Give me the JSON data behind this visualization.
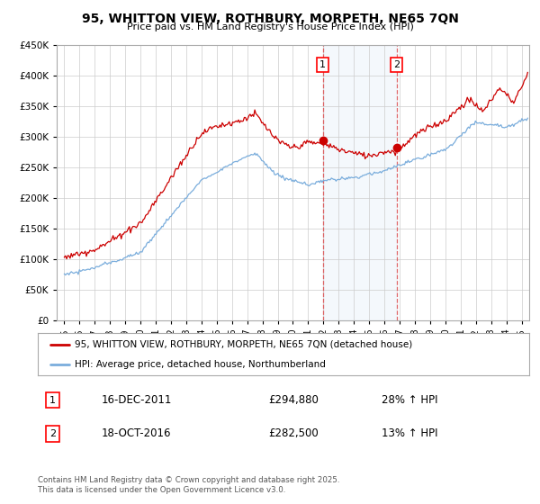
{
  "title": "95, WHITTON VIEW, ROTHBURY, MORPETH, NE65 7QN",
  "subtitle": "Price paid vs. HM Land Registry's House Price Index (HPI)",
  "legend_line1": "95, WHITTON VIEW, ROTHBURY, MORPETH, NE65 7QN (detached house)",
  "legend_line2": "HPI: Average price, detached house, Northumberland",
  "annotation1_label": "1",
  "annotation1_date": "16-DEC-2011",
  "annotation1_price": "£294,880",
  "annotation1_hpi": "28% ↑ HPI",
  "annotation2_label": "2",
  "annotation2_date": "18-OCT-2016",
  "annotation2_price": "£282,500",
  "annotation2_hpi": "13% ↑ HPI",
  "footer": "Contains HM Land Registry data © Crown copyright and database right 2025.\nThis data is licensed under the Open Government Licence v3.0.",
  "sale1_x": 2011.96,
  "sale1_y": 294880,
  "sale2_x": 2016.8,
  "sale2_y": 282500,
  "price_color": "#cc0000",
  "hpi_color": "#7aaddc",
  "background_color": "#ffffff",
  "ylim": [
    0,
    450000
  ],
  "xlim_start": 1994.5,
  "xlim_end": 2025.5,
  "yticks": [
    0,
    50000,
    100000,
    150000,
    200000,
    250000,
    300000,
    350000,
    400000,
    450000
  ],
  "xticks": [
    1995,
    1996,
    1997,
    1998,
    1999,
    2000,
    2001,
    2002,
    2003,
    2004,
    2005,
    2006,
    2007,
    2008,
    2009,
    2010,
    2011,
    2012,
    2013,
    2014,
    2015,
    2016,
    2017,
    2018,
    2019,
    2020,
    2021,
    2022,
    2023,
    2024,
    2025
  ]
}
